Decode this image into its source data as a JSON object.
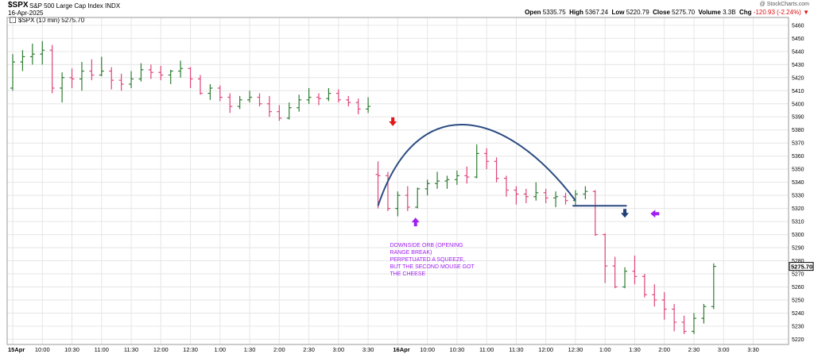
{
  "header": {
    "symbol": "$SPX",
    "name": "S&P 500 Large Cap Index",
    "exchange": "INDX",
    "date": "16-Apr-2025",
    "credit": "@ StockCharts.com",
    "open_label": "Open",
    "open": "5335.75",
    "high_label": "High",
    "high": "5367.24",
    "low_label": "Low",
    "low": "5220.79",
    "close_label": "Close",
    "close": "5275.70",
    "volume_label": "Volume",
    "volume": "3.3B",
    "chg_label": "Chg",
    "chg": "-120.93 (-2.24%)",
    "chg_arrow": "▼",
    "legend": "$SPX (10 min) 5275.70"
  },
  "annotation": {
    "lines": [
      "DOWNSIDE ORB (OPENING",
      "RANGE BREAK)",
      "PERPETUATED A SQUEEZE,",
      "BUT THE SECOND MOUSE GOT",
      "THE CHEESE"
    ]
  },
  "colors": {
    "up": "#2e7d32",
    "down": "#e0457b",
    "grid": "#e6e6e6",
    "arrow_red": "#e01818",
    "arrow_purple": "#a020f0",
    "arrow_blue": "#1f3f7a",
    "annotation": "#a020f0",
    "curve": "#2b4b82",
    "price_tag": "#000000"
  },
  "chart_data": {
    "type": "ohlc",
    "interval": "10 min",
    "ylim": [
      5216,
      5466
    ],
    "y_ticks": [
      5220,
      5230,
      5240,
      5250,
      5260,
      5270,
      5280,
      5290,
      5300,
      5310,
      5320,
      5330,
      5340,
      5350,
      5360,
      5370,
      5380,
      5390,
      5400,
      5410,
      5420,
      5430,
      5440,
      5450,
      5460
    ],
    "last_price_label": "5275.70",
    "x_tick_labels": [
      {
        "bar": 0,
        "label": "15Apr",
        "bold": true
      },
      {
        "bar": 3,
        "label": "10:00"
      },
      {
        "bar": 6,
        "label": "10:30"
      },
      {
        "bar": 9,
        "label": "11:00"
      },
      {
        "bar": 12,
        "label": "11:30"
      },
      {
        "bar": 15,
        "label": "12:00"
      },
      {
        "bar": 18,
        "label": "12:30"
      },
      {
        "bar": 21,
        "label": "1:00"
      },
      {
        "bar": 24,
        "label": "1:30"
      },
      {
        "bar": 27,
        "label": "2:00"
      },
      {
        "bar": 30,
        "label": "2:30"
      },
      {
        "bar": 33,
        "label": "3:00"
      },
      {
        "bar": 36,
        "label": "3:30"
      },
      {
        "bar": 39,
        "label": "16Apr",
        "bold": true
      },
      {
        "bar": 42,
        "label": "10:00"
      },
      {
        "bar": 45,
        "label": "10:30"
      },
      {
        "bar": 48,
        "label": "11:00"
      },
      {
        "bar": 51,
        "label": "11:30"
      },
      {
        "bar": 54,
        "label": "12:00"
      },
      {
        "bar": 57,
        "label": "12:30"
      },
      {
        "bar": 60,
        "label": "1:00"
      },
      {
        "bar": 63,
        "label": "1:30"
      },
      {
        "bar": 66,
        "label": "2:00"
      },
      {
        "bar": 69,
        "label": "2:30"
      },
      {
        "bar": 72,
        "label": "3:00"
      },
      {
        "bar": 75,
        "label": "3:30"
      }
    ],
    "bars": [
      [
        5412,
        5438,
        5410,
        5432
      ],
      [
        5432,
        5441,
        5425,
        5436
      ],
      [
        5436,
        5446,
        5430,
        5438
      ],
      [
        5438,
        5448,
        5430,
        5441
      ],
      [
        5441,
        5445,
        5408,
        5412
      ],
      [
        5412,
        5424,
        5401,
        5420
      ],
      [
        5420,
        5427,
        5412,
        5419
      ],
      [
        5419,
        5432,
        5410,
        5425
      ],
      [
        5425,
        5434,
        5418,
        5422
      ],
      [
        5422,
        5436,
        5421,
        5425
      ],
      [
        5425,
        5428,
        5411,
        5418
      ],
      [
        5418,
        5423,
        5410,
        5415
      ],
      [
        5415,
        5425,
        5412,
        5419
      ],
      [
        5419,
        5431,
        5417,
        5426
      ],
      [
        5426,
        5430,
        5419,
        5424
      ],
      [
        5424,
        5429,
        5418,
        5422
      ],
      [
        5422,
        5426,
        5415,
        5425
      ],
      [
        5425,
        5433,
        5420,
        5427
      ],
      [
        5427,
        5428,
        5412,
        5419
      ],
      [
        5419,
        5422,
        5407,
        5408
      ],
      [
        5408,
        5415,
        5403,
        5412
      ],
      [
        5412,
        5414,
        5402,
        5405
      ],
      [
        5405,
        5408,
        5393,
        5398
      ],
      [
        5398,
        5406,
        5396,
        5403
      ],
      [
        5403,
        5410,
        5401,
        5405
      ],
      [
        5405,
        5408,
        5398,
        5400
      ],
      [
        5400,
        5406,
        5390,
        5394
      ],
      [
        5394,
        5399,
        5387,
        5389
      ],
      [
        5389,
        5401,
        5388,
        5397
      ],
      [
        5397,
        5407,
        5394,
        5403
      ],
      [
        5403,
        5412,
        5400,
        5405
      ],
      [
        5405,
        5408,
        5399,
        5404
      ],
      [
        5404,
        5412,
        5402,
        5408
      ],
      [
        5408,
        5411,
        5401,
        5403
      ],
      [
        5403,
        5406,
        5398,
        5401
      ],
      [
        5401,
        5404,
        5392,
        5396
      ],
      [
        5396,
        5405,
        5393,
        5398
      ],
      [
        5346,
        5356,
        5320,
        5345
      ],
      [
        5345,
        5348,
        5318,
        5320
      ],
      [
        5320,
        5333,
        5314,
        5330
      ],
      [
        5330,
        5337,
        5318,
        5321
      ],
      [
        5321,
        5336,
        5320,
        5335
      ],
      [
        5335,
        5342,
        5330,
        5339
      ],
      [
        5339,
        5348,
        5335,
        5341
      ],
      [
        5341,
        5345,
        5335,
        5342
      ],
      [
        5342,
        5349,
        5338,
        5345
      ],
      [
        5345,
        5352,
        5339,
        5344
      ],
      [
        5344,
        5369,
        5343,
        5362
      ],
      [
        5362,
        5366,
        5350,
        5356
      ],
      [
        5356,
        5359,
        5340,
        5343
      ],
      [
        5343,
        5345,
        5329,
        5334
      ],
      [
        5334,
        5337,
        5323,
        5331
      ],
      [
        5331,
        5335,
        5324,
        5329
      ],
      [
        5329,
        5340,
        5326,
        5332
      ],
      [
        5332,
        5335,
        5324,
        5328
      ],
      [
        5328,
        5333,
        5321,
        5329
      ],
      [
        5329,
        5332,
        5323,
        5326
      ],
      [
        5326,
        5334,
        5322,
        5331
      ],
      [
        5331,
        5337,
        5327,
        5333
      ],
      [
        5333,
        5334,
        5299,
        5300
      ],
      [
        5300,
        5301,
        5263,
        5276
      ],
      [
        5276,
        5283,
        5259,
        5260
      ],
      [
        5260,
        5275,
        5259,
        5272
      ],
      [
        5272,
        5284,
        5262,
        5268
      ],
      [
        5268,
        5270,
        5252,
        5254
      ],
      [
        5254,
        5262,
        5245,
        5250
      ],
      [
        5250,
        5256,
        5235,
        5243
      ],
      [
        5243,
        5247,
        5226,
        5233
      ],
      [
        5233,
        5238,
        5224,
        5226
      ],
      [
        5226,
        5240,
        5224,
        5236
      ],
      [
        5236,
        5247,
        5232,
        5245
      ],
      [
        5245,
        5278,
        5243,
        5275.7
      ]
    ]
  }
}
